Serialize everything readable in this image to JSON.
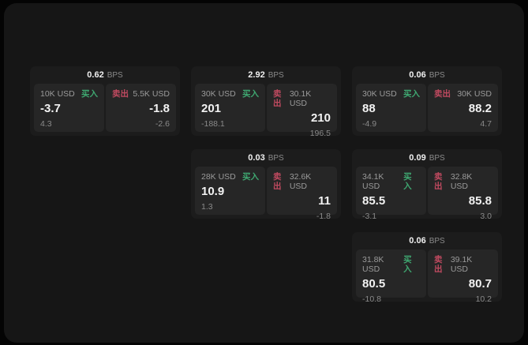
{
  "labels": {
    "bps_unit": "BPS",
    "buy": "买入",
    "sell": "卖出"
  },
  "colors": {
    "page_bg": "#040404",
    "panel_bg": "#161616",
    "card_bg": "#1c1c1c",
    "cell_bg": "#262626",
    "text_primary": "#f2f2f2",
    "text_secondary": "#8a8a8a",
    "buy_green": "#3fa871",
    "sell_red": "#c04a60"
  },
  "cards": [
    {
      "bps": "0.62",
      "buy": {
        "amount": "10K USD",
        "main": "-3.7",
        "sub": "4.3"
      },
      "sell": {
        "amount": "5.5K USD",
        "main": "-1.8",
        "sub": "-2.6"
      }
    },
    {
      "bps": "2.92",
      "buy": {
        "amount": "30K USD",
        "main": "201",
        "sub": "-188.1"
      },
      "sell": {
        "amount": "30.1K USD",
        "main": "210",
        "sub": "196.5"
      }
    },
    {
      "bps": "0.06",
      "buy": {
        "amount": "30K USD",
        "main": "88",
        "sub": "-4.9"
      },
      "sell": {
        "amount": "30K USD",
        "main": "88.2",
        "sub": "4.7"
      }
    },
    {
      "bps": "0.03",
      "buy": {
        "amount": "28K USD",
        "main": "10.9",
        "sub": "1.3"
      },
      "sell": {
        "amount": "32.6K USD",
        "main": "11",
        "sub": "-1.8"
      }
    },
    {
      "bps": "0.09",
      "buy": {
        "amount": "34.1K USD",
        "main": "85.5",
        "sub": "-3.1"
      },
      "sell": {
        "amount": "32.8K USD",
        "main": "85.8",
        "sub": "3.0"
      }
    },
    {
      "bps": "0.06",
      "buy": {
        "amount": "31.8K USD",
        "main": "80.5",
        "sub": "-10.8"
      },
      "sell": {
        "amount": "39.1K USD",
        "main": "80.7",
        "sub": "10.2"
      }
    }
  ]
}
